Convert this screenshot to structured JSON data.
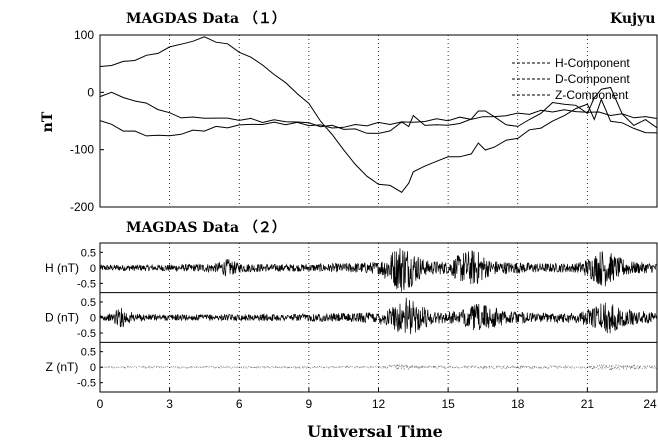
{
  "chart_data": [
    {
      "type": "line",
      "title": "MAGDAS Data （１）",
      "station": "Kujyu",
      "xlabel": "",
      "ylabel": "nT",
      "xlim": [
        0,
        24
      ],
      "ylim": [
        -200,
        100
      ],
      "yticks": [
        "100",
        "0",
        "-100",
        "-200"
      ],
      "xgrid_at": [
        3,
        6,
        9,
        12,
        15,
        18,
        21
      ],
      "grid": "vertical dotted",
      "legend_position": "top-right",
      "series": [
        {
          "name": "H-Component",
          "x": [
            0,
            0.5,
            1,
            1.5,
            2,
            2.5,
            3,
            3.5,
            4,
            4.5,
            5,
            5.5,
            6,
            6.5,
            7,
            7.5,
            8,
            8.5,
            9,
            9.5,
            10,
            10.5,
            11,
            11.5,
            12,
            12.5,
            13,
            13.3,
            13.5,
            14,
            14.5,
            15,
            15.5,
            16,
            16.3,
            16.6,
            17,
            17.5,
            18,
            18.5,
            19,
            19.5,
            20,
            20.5,
            21,
            21.3,
            21.6,
            22,
            22.5,
            23,
            23.5,
            24
          ],
          "values": [
            45,
            48,
            52,
            58,
            62,
            70,
            78,
            84,
            90,
            95,
            90,
            82,
            72,
            60,
            48,
            32,
            15,
            0,
            -22,
            -48,
            -75,
            -100,
            -125,
            -148,
            -158,
            -165,
            -172,
            -160,
            -138,
            -128,
            -122,
            -110,
            -115,
            -105,
            -90,
            -100,
            -95,
            -85,
            -78,
            -68,
            -60,
            -52,
            -40,
            -28,
            -22,
            -45,
            -15,
            -48,
            -55,
            -62,
            -70,
            -72
          ]
        },
        {
          "name": "D-Component",
          "x": [
            0,
            0.5,
            1,
            1.5,
            2,
            2.5,
            3,
            3.5,
            4,
            4.5,
            5,
            5.5,
            6,
            6.5,
            7,
            7.5,
            8,
            8.5,
            9,
            9.5,
            10,
            10.5,
            11,
            11.5,
            12,
            12.5,
            13,
            13.3,
            13.5,
            14,
            14.5,
            15,
            15.5,
            16,
            16.3,
            16.6,
            17,
            17.5,
            18,
            18.5,
            19,
            19.5,
            20,
            20.5,
            21,
            21.3,
            21.6,
            22,
            22.5,
            23,
            23.5,
            24
          ],
          "values": [
            -5,
            -2,
            -8,
            -15,
            -20,
            -28,
            -38,
            -42,
            -45,
            -44,
            -45,
            -46,
            -47,
            -48,
            -50,
            -50,
            -50,
            -52,
            -54,
            -58,
            -60,
            -62,
            -66,
            -70,
            -72,
            -68,
            -50,
            -62,
            -38,
            -60,
            -55,
            -58,
            -55,
            -45,
            -35,
            -30,
            -45,
            -55,
            -60,
            -48,
            -35,
            -20,
            -18,
            -25,
            -35,
            -10,
            5,
            10,
            -40,
            -55,
            -50,
            -60
          ]
        },
        {
          "name": "Z-Component",
          "x": [
            0,
            0.5,
            1,
            1.5,
            2,
            2.5,
            3,
            3.5,
            4,
            4.5,
            5,
            5.5,
            6,
            6.5,
            7,
            7.5,
            8,
            8.5,
            9,
            9.5,
            10,
            10.5,
            11,
            11.5,
            12,
            12.5,
            13,
            13.5,
            14,
            14.5,
            15,
            15.5,
            16,
            16.5,
            17,
            17.5,
            18,
            18.5,
            19,
            19.5,
            20,
            20.5,
            21,
            21.5,
            22,
            22.5,
            23,
            23.5,
            24
          ],
          "values": [
            -48,
            -58,
            -65,
            -70,
            -74,
            -76,
            -76,
            -72,
            -68,
            -65,
            -62,
            -60,
            -58,
            -56,
            -55,
            -54,
            -54,
            -55,
            -56,
            -58,
            -62,
            -60,
            -58,
            -56,
            -55,
            -54,
            -53,
            -52,
            -50,
            -48,
            -47,
            -46,
            -45,
            -44,
            -42,
            -40,
            -38,
            -36,
            -34,
            -32,
            -32,
            -33,
            -34,
            -36,
            -38,
            -40,
            -42,
            -44,
            -45
          ]
        }
      ]
    },
    {
      "type": "line",
      "title": "MAGDAS Data （２）",
      "xlabel": "Universal Time",
      "xlim": [
        0,
        24
      ],
      "xticks": [
        "0",
        "3",
        "6",
        "9",
        "12",
        "15",
        "18",
        "21",
        "24"
      ],
      "grid": "vertical dotted",
      "panels": [
        {
          "ylabel": "H (nT)",
          "ylim": [
            -0.8,
            0.8
          ],
          "yticks": [
            "0.5",
            "0",
            "-0.5"
          ],
          "envelope_amplitude": {
            "x": [
              0,
              2,
              4,
              5,
              5.5,
              6,
              7.5,
              9,
              10.5,
              12,
              12.5,
              13,
              13.5,
              14,
              15,
              15.7,
              16.2,
              16.8,
              17.5,
              19,
              20.5,
              21,
              21.7,
              22.3,
              23,
              24
            ],
            "values": [
              0.1,
              0.1,
              0.12,
              0.15,
              0.3,
              0.15,
              0.12,
              0.12,
              0.15,
              0.2,
              0.5,
              0.85,
              0.55,
              0.25,
              0.2,
              0.55,
              0.6,
              0.25,
              0.2,
              0.15,
              0.15,
              0.3,
              0.65,
              0.35,
              0.2,
              0.15
            ]
          }
        },
        {
          "ylabel": "D (nT)",
          "ylim": [
            -0.8,
            0.8
          ],
          "yticks": [
            "0.5",
            "0",
            "-0.5"
          ],
          "envelope_amplitude": {
            "x": [
              0,
              0.5,
              0.8,
              1.1,
              1.5,
              3,
              6,
              9,
              11,
              12,
              12.7,
              13.2,
              13.8,
              14.5,
              15.5,
              16.2,
              16.8,
              17.5,
              19,
              20.5,
              21.2,
              21.8,
              22.5,
              23.5,
              24
            ],
            "values": [
              0.1,
              0.12,
              0.35,
              0.3,
              0.12,
              0.1,
              0.1,
              0.12,
              0.15,
              0.2,
              0.4,
              0.65,
              0.4,
              0.2,
              0.2,
              0.45,
              0.4,
              0.2,
              0.15,
              0.18,
              0.3,
              0.6,
              0.3,
              0.2,
              0.15
            ]
          }
        },
        {
          "ylabel": "Z (nT)",
          "ylim": [
            -0.8,
            0.8
          ],
          "yticks": [
            "0.5",
            "0",
            "-0.5"
          ],
          "envelope_amplitude": {
            "x": [
              0,
              12,
              13,
              14,
              21,
              22,
              24
            ],
            "values": [
              0.04,
              0.04,
              0.1,
              0.05,
              0.05,
              0.1,
              0.05
            ]
          }
        }
      ]
    }
  ]
}
